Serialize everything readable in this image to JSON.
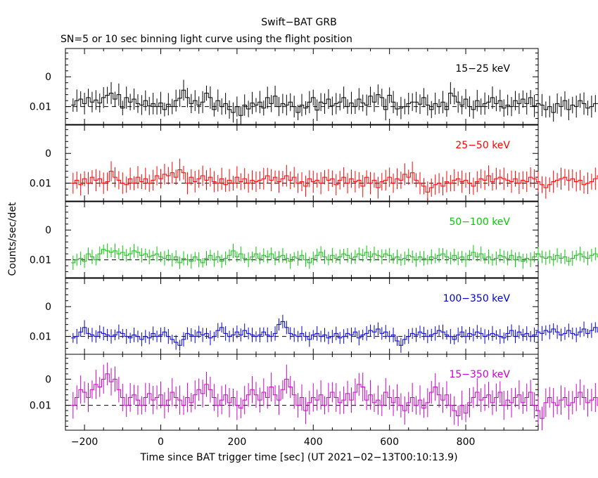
{
  "chart_data": {
    "type": "line",
    "title": "Swift−BAT GRB",
    "subtitle": "SN=5 or 10 sec binning light curve using the flight position",
    "xlabel": "Time since BAT trigger time [sec] (UT 2021−02−13T00:10:13.9)",
    "ylabel": "Counts/sec/det",
    "xlim": [
      -250,
      990
    ],
    "x_ticks": [
      -200,
      0,
      200,
      400,
      600,
      800
    ],
    "x_tick_labels": [
      "−200",
      "0",
      "200",
      "400",
      "600",
      "800"
    ],
    "y_tick_labels": [
      "0.01",
      "0"
    ],
    "bin_width_sec": 10,
    "x_start_sec": -235,
    "panels": [
      {
        "name": "15−25 keV",
        "color": "#000000",
        "ylim": [
          -0.006,
          0.0195
        ],
        "yticks": [
          0,
          0.01
        ],
        "error": 0.003,
        "values": [
          0.0005,
          0.002,
          0.0025,
          0.001,
          0.003,
          0.0015,
          0.0022,
          0.0012,
          0.003,
          0.0038,
          0.0045,
          0.0025,
          0.004,
          -0.0005,
          0.003,
          0.0015,
          0.0025,
          0.001,
          0.0005,
          0.002,
          0.0002,
          0.001,
          0.0,
          0.0012,
          -0.001,
          0.0008,
          0.0,
          0.002,
          0.0028,
          0.0055,
          0.003,
          0.001,
          0.002,
          0.0005,
          0.0015,
          0.0045,
          0.003,
          -0.001,
          0.002,
          0.0,
          0.001,
          -0.001,
          -0.002,
          0.0,
          -0.003,
          0.0005,
          -0.0008,
          0.0012,
          0.0005,
          0.0015,
          -0.0005,
          0.003,
          0.001,
          0.0035,
          0.0,
          0.001,
          0.0005,
          0.0015,
          0.0,
          -0.002,
          0.0005,
          -0.0005,
          0.0015,
          0.003,
          -0.0012,
          0.0015,
          0.001,
          0.0025,
          0.0002,
          0.001,
          0.0015,
          0.003,
          0.0,
          0.0012,
          0.0,
          0.0025,
          0.0012,
          0.0005,
          0.0035,
          0.0015,
          0.004,
          0.003,
          -0.001,
          0.0038,
          0.0015,
          -0.0008,
          -0.0005,
          0.0,
          0.001,
          0.0015,
          0.0015,
          0.0008,
          0.003,
          0.0005,
          -0.001,
          0.001,
          0.0,
          0.0015,
          -0.001,
          0.0045,
          0.0035,
          0.0015,
          0.0005,
          0.0025,
          0.0,
          -0.001,
          0.002,
          0.0,
          0.001,
          0.0015,
          0.003,
          0.001,
          0.002,
          -0.0005,
          0.0005,
          0.0,
          0.002,
          0.001,
          0.0025,
          0.001,
          0.003,
          0.0002,
          0.001,
          0.0005,
          -0.001,
          0.0,
          -0.002,
          0.001,
          0.0,
          0.002,
          -0.001,
          0.0005,
          0.0,
          0.002,
          0.001,
          -0.0005,
          0.0,
          0.001,
          0.001,
          0.002,
          0.001,
          0.0,
          0.001,
          0.0025,
          -0.0005,
          0.0015,
          0.002,
          0.0055,
          0.0045,
          0.001,
          0.003,
          0.0005,
          0.002,
          0.003,
          -0.001,
          0.001,
          0.0,
          0.0015,
          0.003,
          0.0035,
          0.0015,
          0.0005,
          0.002,
          0.001,
          0.0015,
          0.0005,
          0.003,
          0.004,
          0.003,
          0.002,
          0.0035,
          0.0015,
          0.0045,
          0.0035
        ]
      },
      {
        "name": "25−50 keV",
        "color": "#ff0000",
        "ylim": [
          -0.006,
          0.0195
        ],
        "yticks": [
          0,
          0.01
        ],
        "error": 0.003,
        "values": [
          0.0,
          0.001,
          -0.0005,
          0.0015,
          0.0,
          0.002,
          0.001,
          0.0015,
          0.0,
          0.0005,
          0.004,
          0.002,
          0.001,
          0.0,
          -0.0005,
          0.0015,
          0.0,
          0.002,
          0.0005,
          0.0015,
          0.0,
          0.001,
          0.0025,
          0.0015,
          0.003,
          0.0025,
          0.0035,
          0.002,
          0.0045,
          0.0035,
          0.0,
          0.002,
          0.0005,
          0.0015,
          0.0025,
          0.001,
          0.002,
          0.0005,
          0.0,
          0.0015,
          -0.0005,
          0.001,
          0.0,
          0.002,
          0.0005,
          0.0015,
          0.0,
          0.001,
          0.0005,
          0.001,
          0.0015,
          0.0025,
          0.001,
          0.002,
          0.0005,
          0.0015,
          0.0025,
          0.001,
          0.002,
          0.0,
          0.0005,
          -0.001,
          0.0015,
          0.0005,
          0.001,
          0.0,
          0.002,
          0.001,
          0.0015,
          -0.0005,
          0.001,
          0.002,
          0.0,
          0.0015,
          0.0005,
          0.001,
          -0.001,
          0.002,
          0.0,
          0.001,
          -0.0015,
          0.0005,
          0.001,
          0.002,
          0.0,
          0.0015,
          0.001,
          0.003,
          0.002,
          0.0035,
          0.001,
          0.0,
          -0.001,
          -0.003,
          -0.0015,
          -0.0005,
          0.0,
          -0.001,
          0.0005,
          0.0,
          0.001,
          0.0015,
          0.0005,
          0.001,
          0.0,
          -0.001,
          0.0005,
          0.0015,
          0.001,
          0.0025,
          0.0005,
          0.0015,
          0.002,
          0.0015,
          0.001,
          0.0005,
          0.0015,
          0.0,
          0.001,
          0.0005,
          0.002,
          0.0015,
          0.0005,
          -0.0005,
          -0.0015,
          -0.0005,
          0.0005,
          0.001,
          0.0015,
          0.002,
          0.001,
          0.0015,
          0.0005,
          0.001,
          -0.0005,
          0.0,
          0.0005,
          0.0015,
          0.0025,
          0.001,
          0.003,
          0.0015,
          0.002,
          0.0005,
          0.0015,
          0.001,
          0.0,
          0.001,
          -0.0005,
          0.0015,
          0.002,
          0.001,
          0.0,
          0.001,
          -0.0005,
          0.0015,
          0.001,
          0.0005,
          -0.0005,
          0.0,
          -0.0015,
          -0.001,
          0.0,
          0.001,
          -0.002,
          -0.0005,
          0.0005,
          -0.001,
          0.001,
          0.0,
          -0.0015
        ]
      },
      {
        "name": "50−100 keV",
        "color": "#00cc00",
        "ylim": [
          -0.006,
          0.0195
        ],
        "yticks": [
          0,
          0.01
        ],
        "error": 0.002,
        "values": [
          -0.001,
          0.0,
          0.0005,
          -0.0005,
          0.002,
          0.001,
          0.0,
          0.002,
          0.0035,
          0.003,
          0.0025,
          0.003,
          0.002,
          0.0025,
          0.0015,
          0.002,
          0.003,
          0.0025,
          0.0015,
          0.002,
          0.001,
          0.0015,
          0.002,
          0.001,
          0.0005,
          0.0015,
          0.0,
          0.001,
          -0.001,
          0.0005,
          0.0,
          -0.0005,
          0.001,
          0.0,
          -0.001,
          0.0005,
          0.0015,
          0.0,
          0.001,
          -0.0005,
          0.0005,
          0.0015,
          0.003,
          0.001,
          0.002,
          0.0005,
          0.0,
          0.001,
          0.002,
          0.0005,
          0.0015,
          0.001,
          0.002,
          0.0005,
          0.001,
          0.0015,
          0.0005,
          -0.0005,
          0.001,
          0.0005,
          0.0015,
          0.0,
          -0.001,
          0.0005,
          0.0015,
          0.0025,
          0.001,
          0.0,
          0.0015,
          0.0005,
          0.001,
          0.002,
          0.0015,
          0.0005,
          0.001,
          0.002,
          0.0015,
          0.0025,
          0.001,
          0.002,
          0.0015,
          0.001,
          0.002,
          0.0015,
          0.0005,
          0.001,
          0.0,
          0.0005,
          0.0015,
          0.001,
          0.0,
          0.001,
          0.0005,
          0.0,
          0.001,
          0.0005,
          0.0015,
          0.002,
          0.001,
          0.0005,
          0.0015,
          0.0005,
          0.001,
          0.0,
          0.0015,
          0.0025,
          0.001,
          0.002,
          0.0005,
          0.001,
          0.0,
          0.0005,
          0.0015,
          0.001,
          0.0005,
          0.0015,
          0.0,
          0.001,
          -0.0005,
          0.0005,
          0.0,
          0.001,
          0.002,
          0.001,
          0.0005,
          0.001,
          0.0,
          0.0015,
          0.0005,
          0.001,
          -0.0005,
          0.0005,
          0.0015,
          0.002,
          0.001,
          0.0005,
          0.0015,
          0.002,
          0.001,
          0.0,
          0.001,
          0.0015,
          0.0005,
          0.001,
          0.002,
          0.003,
          0.002,
          0.0015,
          0.0045,
          0.0035,
          0.003,
          0.002,
          0.0025,
          0.0015,
          0.0005,
          0.0015,
          0.0,
          -0.001,
          0.0005,
          0.001,
          0.0,
          -0.0005,
          0.0015,
          0.002,
          0.0035,
          0.002,
          0.001,
          0.0,
          -0.0015,
          -0.001,
          0.0,
          -0.0005,
          0.001,
          -0.001,
          -0.0005,
          0.0005,
          -0.002
        ]
      },
      {
        "name": "100−350 keV",
        "color": "#0000cc",
        "ylim": [
          -0.006,
          0.0195
        ],
        "yticks": [
          0,
          0.01
        ],
        "error": 0.002,
        "values": [
          -0.0005,
          0.0,
          0.0015,
          0.003,
          0.001,
          0.0005,
          0.0,
          0.0015,
          0.001,
          0.0005,
          0.0,
          0.0005,
          0.0015,
          0.001,
          0.0,
          -0.0005,
          0.0005,
          0.0,
          -0.001,
          0.0,
          -0.0005,
          0.001,
          0.0,
          0.0005,
          0.0015,
          0.0,
          -0.001,
          -0.002,
          -0.003,
          -0.001,
          0.001,
          0.0005,
          0.0,
          0.0015,
          0.0005,
          0.001,
          -0.0005,
          0.0,
          0.002,
          0.003,
          0.001,
          0.0,
          0.0005,
          0.0015,
          0.0005,
          0.002,
          0.001,
          0.0005,
          0.0,
          0.0005,
          0.0015,
          0.0005,
          0.0,
          0.001,
          0.004,
          0.005,
          0.003,
          0.001,
          0.0005,
          0.0,
          0.001,
          0.0,
          -0.001,
          0.0005,
          0.001,
          0.0,
          0.0005,
          -0.0005,
          0.0,
          0.001,
          -0.0005,
          0.0,
          0.001,
          0.0005,
          0.0015,
          -0.0005,
          0.0005,
          0.001,
          0.002,
          0.0015,
          0.0025,
          0.001,
          0.0015,
          0.0,
          0.0005,
          -0.0015,
          -0.003,
          -0.001,
          0.0,
          0.001,
          0.0005,
          0.0015,
          0.001,
          0.0,
          0.0005,
          0.001,
          0.002,
          0.0015,
          0.0005,
          0.0,
          -0.001,
          0.0005,
          0.0015,
          0.0,
          0.001,
          0.0005,
          0.0015,
          0.001,
          0.0,
          0.0005,
          0.001,
          0.0005,
          0.0,
          -0.0005,
          0.001,
          0.002,
          0.0,
          0.0015,
          0.0005,
          0.001,
          0.0,
          0.0005,
          0.0015,
          0.001,
          0.002,
          0.0015,
          0.0025,
          0.0015,
          0.0005,
          0.001,
          0.002,
          0.001,
          0.0005,
          0.0015,
          0.0025,
          0.001,
          0.002,
          0.003,
          0.0015,
          0.002,
          0.001,
          0.0025,
          0.003,
          0.002,
          0.001,
          0.0015,
          0.0005,
          0.002,
          0.001,
          0.0015,
          0.002,
          0.005,
          0.0035,
          0.001,
          0.0005,
          0.0,
          0.001,
          0.0005,
          -0.0005,
          0.001,
          0.0,
          0.0005,
          -0.001,
          0.0005,
          0.001,
          0.0,
          0.0005,
          0.0015,
          0.0025,
          0.0,
          0.001,
          0.0005,
          0.0015,
          0.0005,
          0.003,
          0.0055
        ]
      },
      {
        "name": "15−350 keV",
        "color": "#cc00cc",
        "ylim": [
          -0.0095,
          0.0195
        ],
        "yticks": [
          0,
          0.01
        ],
        "error": 0.0045,
        "values": [
          0.0,
          0.003,
          0.006,
          0.005,
          0.003,
          0.006,
          0.008,
          0.007,
          0.01,
          0.012,
          0.009,
          0.01,
          0.006,
          0.003,
          0.0,
          0.003,
          0.004,
          0.002,
          0.0,
          0.003,
          0.0045,
          0.002,
          0.003,
          0.004,
          0.0,
          0.002,
          0.005,
          0.003,
          0.002,
          0.0,
          0.003,
          0.001,
          0.004,
          0.006,
          0.0045,
          0.008,
          0.006,
          0.003,
          0.0,
          0.002,
          0.004,
          0.001,
          0.003,
          0.0,
          -0.001,
          0.002,
          0.004,
          0.006,
          0.004,
          0.002,
          0.005,
          0.003,
          0.007,
          0.004,
          0.002,
          0.006,
          0.01,
          0.007,
          0.004,
          0.0,
          0.003,
          -0.002,
          0.001,
          0.003,
          0.002,
          0.004,
          0.0,
          0.003,
          0.005,
          0.003,
          0.001,
          0.002,
          0.0045,
          0.002,
          0.005,
          0.008,
          0.007,
          0.002,
          0.004,
          0.001,
          0.002,
          0.0,
          0.005,
          0.003,
          0.001,
          0.003,
          0.0,
          -0.002,
          0.001,
          0.003,
          0.0,
          0.002,
          -0.001,
          0.001,
          0.005,
          0.007,
          0.004,
          0.002,
          0.004,
          0.0,
          -0.002,
          -0.004,
          0.0,
          -0.003,
          0.001,
          0.003,
          0.005,
          0.002,
          0.003,
          0.004,
          0.001,
          0.003,
          0.005,
          0.0,
          0.002,
          0.001,
          0.003,
          0.004,
          0.001,
          0.003,
          0.005,
          0.0,
          -0.002,
          -0.005,
          0.001,
          0.003,
          0.001,
          0.0,
          0.002,
          0.003,
          0.0,
          0.001,
          0.003,
          0.005,
          0.003,
          0.001,
          0.002,
          0.003,
          0.0,
          0.002,
          0.003,
          0.001,
          0.0,
          0.001,
          0.005,
          0.01,
          0.007,
          0.003,
          0.005,
          0.004,
          0.002,
          0.0,
          0.005,
          0.003,
          0.001,
          0.002,
          0.003,
          0.0,
          0.003,
          0.005,
          0.002,
          0.004,
          0.0,
          0.005,
          0.003,
          0.001,
          -0.001,
          0.002,
          0.004,
          0.001,
          0.003,
          0.005,
          0.002,
          0.0,
          0.006
        ]
      }
    ]
  }
}
